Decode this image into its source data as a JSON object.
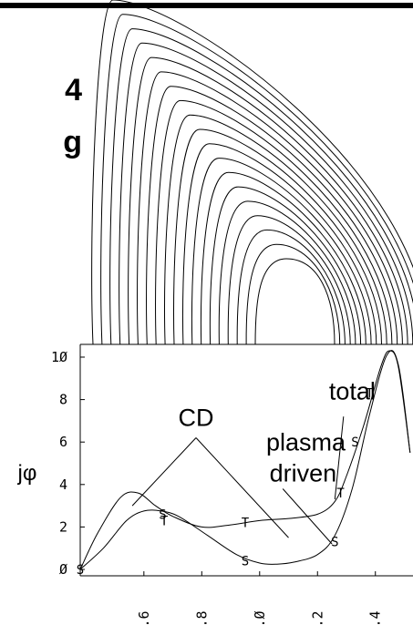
{
  "side_text": [
    "4",
    "g"
  ],
  "chart_data": [
    {
      "type": "contour",
      "description_levels": 19,
      "x_range": [
        1.38,
        2.53
      ],
      "note": "nested flux-surface contours (top panel)"
    },
    {
      "type": "line",
      "xlim": [
        1.38,
        2.53
      ],
      "ylim": [
        -0.3,
        10.6
      ],
      "ylabel": "jφ",
      "y_ticks": [
        0,
        2,
        4,
        6,
        8,
        10
      ],
      "y_tick_labels": [
        "Ø",
        "2",
        "4",
        "6",
        "8",
        "1Ø"
      ],
      "x_ticks": [
        1.6,
        1.8,
        2.0,
        2.2,
        2.4
      ],
      "x_tick_labels": [
        "1.6",
        "1.8",
        "2.Ø",
        "2.2",
        "2.4"
      ],
      "series": [
        {
          "name": "total",
          "marker": "T",
          "x": [
            1.38,
            1.44,
            1.52,
            1.58,
            1.64,
            1.7,
            1.8,
            1.9,
            2.0,
            2.1,
            2.2,
            2.26,
            2.3,
            2.36,
            2.42,
            2.45,
            2.48,
            2.52
          ],
          "y": [
            0.0,
            1.7,
            3.4,
            3.6,
            3.0,
            2.5,
            2.0,
            2.1,
            2.3,
            2.4,
            2.6,
            3.2,
            4.4,
            6.8,
            9.6,
            10.3,
            9.5,
            5.5
          ]
        },
        {
          "name": "CD",
          "marker": "S",
          "x": [
            1.38,
            1.46,
            1.54,
            1.6,
            1.66,
            1.72,
            1.82,
            1.92,
            2.0,
            2.06,
            2.12,
            2.2,
            2.26,
            2.32,
            2.38,
            2.44,
            2.48,
            2.52
          ],
          "y": [
            0.0,
            1.0,
            2.3,
            2.75,
            2.75,
            2.5,
            1.6,
            0.7,
            0.3,
            0.25,
            0.35,
            0.7,
            1.6,
            3.8,
            7.3,
            10.1,
            9.6,
            5.5
          ]
        }
      ],
      "markers": [
        {
          "text": "S",
          "x": 1.38,
          "y": 0.0
        },
        {
          "text": "S",
          "x": 1.665,
          "y": 2.6
        },
        {
          "text": "T",
          "x": 1.67,
          "y": 2.3
        },
        {
          "text": "T",
          "x": 1.95,
          "y": 2.2
        },
        {
          "text": "S",
          "x": 1.95,
          "y": 0.4
        },
        {
          "text": "S",
          "x": 2.26,
          "y": 1.3
        },
        {
          "text": "T",
          "x": 2.28,
          "y": 3.6
        },
        {
          "text": "S",
          "x": 2.33,
          "y": 6.0
        },
        {
          "text": "T",
          "x": 2.38,
          "y": 8.3
        }
      ],
      "annotations": [
        {
          "text": "CD",
          "x": 1.78,
          "y": 6.75
        },
        {
          "text": "total",
          "x": 2.32,
          "y": 8.0
        },
        {
          "text": "plasma",
          "x": 2.16,
          "y": 5.6
        },
        {
          "text": "driven",
          "x": 2.15,
          "y": 4.15
        }
      ]
    }
  ]
}
